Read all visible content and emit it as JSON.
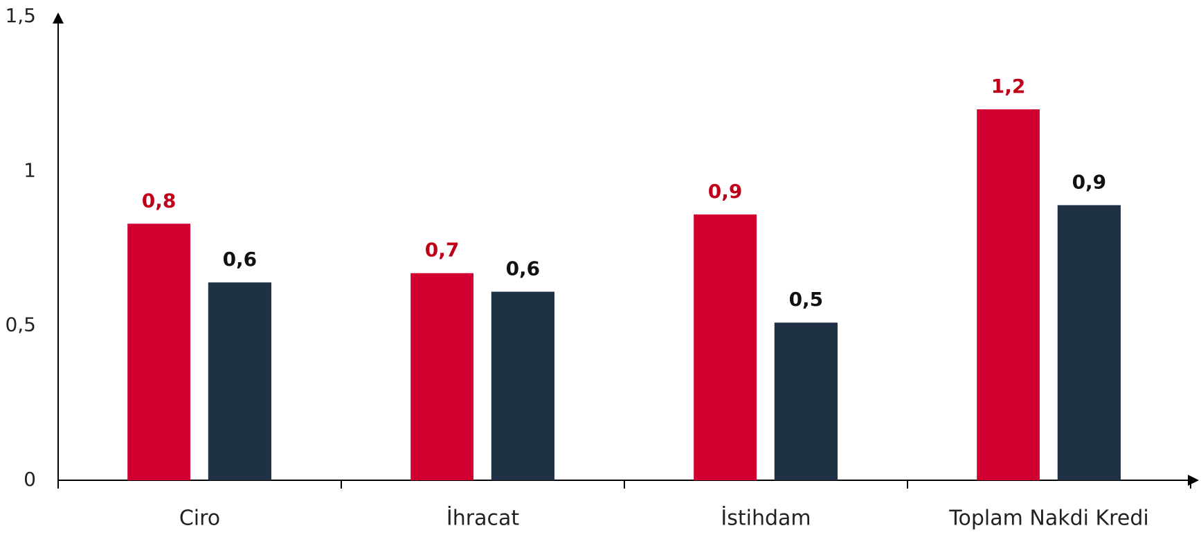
{
  "chart_data": {
    "type": "bar",
    "categories": [
      "Ciro",
      "İhracat",
      "İstihdam",
      "Toplam Nakdi Kredi"
    ],
    "series": [
      {
        "color": "#d20030",
        "label_color": "#c00018",
        "values": [
          0.83,
          0.67,
          0.86,
          1.2
        ],
        "value_labels": [
          "0,8",
          "0,7",
          "0,9",
          "1,2"
        ]
      },
      {
        "color": "#1f3145",
        "label_color": "#111111",
        "values": [
          0.64,
          0.61,
          0.51,
          0.89
        ],
        "value_labels": [
          "0,6",
          "0,6",
          "0,5",
          "0,9"
        ]
      }
    ],
    "ylim": [
      0,
      1.5
    ],
    "yticks": [
      0,
      {
        "value": 0.5,
        "label": "0,5"
      },
      1,
      {
        "value": 1.5,
        "label": "1,5"
      }
    ]
  }
}
